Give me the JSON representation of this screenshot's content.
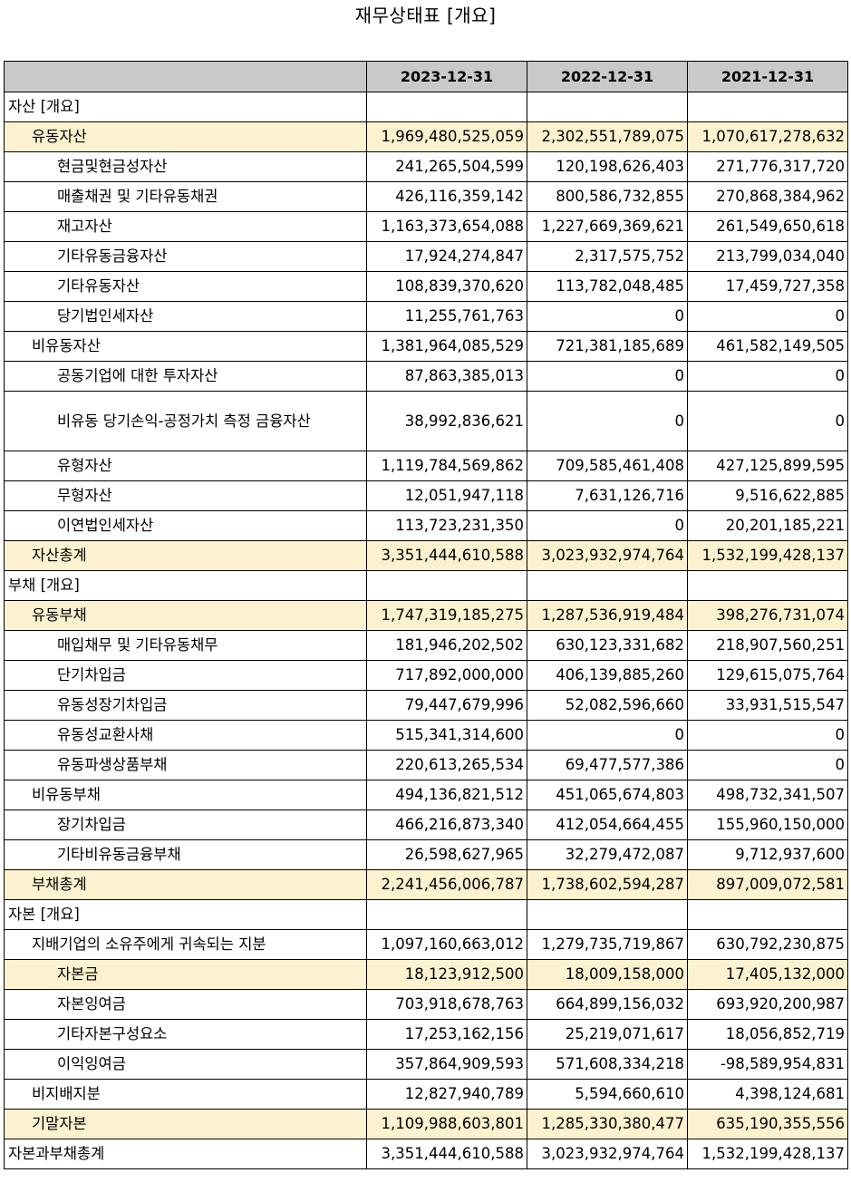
{
  "title": "재무상태표 [개요]",
  "headers": [
    "",
    "2023-12-31",
    "2022-12-31",
    "2021-12-31"
  ],
  "highlight_color": "#fdf2cf",
  "header_color": "#c9c9c9",
  "rows": [
    {
      "label": "자산 [개요]",
      "indent": 0,
      "highlight": false,
      "values": [
        "",
        "",
        ""
      ]
    },
    {
      "label": "유동자산",
      "indent": 1,
      "highlight": true,
      "values": [
        "1,969,480,525,059",
        "2,302,551,789,075",
        "1,070,617,278,632"
      ]
    },
    {
      "label": "현금및현금성자산",
      "indent": 2,
      "highlight": false,
      "values": [
        "241,265,504,599",
        "120,198,626,403",
        "271,776,317,720"
      ]
    },
    {
      "label": "매출채권 및 기타유동채권",
      "indent": 2,
      "highlight": false,
      "values": [
        "426,116,359,142",
        "800,586,732,855",
        "270,868,384,962"
      ]
    },
    {
      "label": "재고자산",
      "indent": 2,
      "highlight": false,
      "values": [
        "1,163,373,654,088",
        "1,227,669,369,621",
        "261,549,650,618"
      ]
    },
    {
      "label": "기타유동금융자산",
      "indent": 2,
      "highlight": false,
      "values": [
        "17,924,274,847",
        "2,317,575,752",
        "213,799,034,040"
      ]
    },
    {
      "label": "기타유동자산",
      "indent": 2,
      "highlight": false,
      "values": [
        "108,839,370,620",
        "113,782,048,485",
        "17,459,727,358"
      ]
    },
    {
      "label": "당기법인세자산",
      "indent": 2,
      "highlight": false,
      "values": [
        "11,255,761,763",
        "0",
        "0"
      ]
    },
    {
      "label": "비유동자산",
      "indent": 1,
      "highlight": false,
      "values": [
        "1,381,964,085,529",
        "721,381,185,689",
        "461,582,149,505"
      ]
    },
    {
      "label": "공동기업에 대한 투자자산",
      "indent": 2,
      "highlight": false,
      "values": [
        "87,863,385,013",
        "0",
        "0"
      ]
    },
    {
      "label": "비유동 당기손익-공정가치 측정 금융자산",
      "indent": 2,
      "highlight": false,
      "tall": true,
      "values": [
        "38,992,836,621",
        "0",
        "0"
      ]
    },
    {
      "label": "유형자산",
      "indent": 2,
      "highlight": false,
      "values": [
        "1,119,784,569,862",
        "709,585,461,408",
        "427,125,899,595"
      ]
    },
    {
      "label": "무형자산",
      "indent": 2,
      "highlight": false,
      "values": [
        "12,051,947,118",
        "7,631,126,716",
        "9,516,622,885"
      ]
    },
    {
      "label": "이연법인세자산",
      "indent": 2,
      "highlight": false,
      "values": [
        "113,723,231,350",
        "0",
        "20,201,185,221"
      ]
    },
    {
      "label": "자산총계",
      "indent": 1,
      "highlight": true,
      "values": [
        "3,351,444,610,588",
        "3,023,932,974,764",
        "1,532,199,428,137"
      ]
    },
    {
      "label": "부채 [개요]",
      "indent": 0,
      "highlight": false,
      "values": [
        "",
        "",
        ""
      ]
    },
    {
      "label": "유동부채",
      "indent": 1,
      "highlight": true,
      "values": [
        "1,747,319,185,275",
        "1,287,536,919,484",
        "398,276,731,074"
      ]
    },
    {
      "label": "매입채무 및 기타유동채무",
      "indent": 2,
      "highlight": false,
      "values": [
        "181,946,202,502",
        "630,123,331,682",
        "218,907,560,251"
      ]
    },
    {
      "label": "단기차입금",
      "indent": 2,
      "highlight": false,
      "values": [
        "717,892,000,000",
        "406,139,885,260",
        "129,615,075,764"
      ]
    },
    {
      "label": "유동성장기차입금",
      "indent": 2,
      "highlight": false,
      "values": [
        "79,447,679,996",
        "52,082,596,660",
        "33,931,515,547"
      ]
    },
    {
      "label": "유동성교환사채",
      "indent": 2,
      "highlight": false,
      "values": [
        "515,341,314,600",
        "0",
        "0"
      ]
    },
    {
      "label": "유동파생상품부채",
      "indent": 2,
      "highlight": false,
      "values": [
        "220,613,265,534",
        "69,477,577,386",
        "0"
      ]
    },
    {
      "label": "비유동부채",
      "indent": 1,
      "highlight": false,
      "values": [
        "494,136,821,512",
        "451,065,674,803",
        "498,732,341,507"
      ]
    },
    {
      "label": "장기차입금",
      "indent": 2,
      "highlight": false,
      "values": [
        "466,216,873,340",
        "412,054,664,455",
        "155,960,150,000"
      ]
    },
    {
      "label": "기타비유동금융부채",
      "indent": 2,
      "highlight": false,
      "values": [
        "26,598,627,965",
        "32,279,472,087",
        "9,712,937,600"
      ]
    },
    {
      "label": "부채총계",
      "indent": 1,
      "highlight": true,
      "values": [
        "2,241,456,006,787",
        "1,738,602,594,287",
        "897,009,072,581"
      ]
    },
    {
      "label": "자본 [개요]",
      "indent": 0,
      "highlight": false,
      "values": [
        "",
        "",
        ""
      ]
    },
    {
      "label": "지배기업의 소유주에게 귀속되는 지분",
      "indent": 1,
      "highlight": false,
      "values": [
        "1,097,160,663,012",
        "1,279,735,719,867",
        "630,792,230,875"
      ]
    },
    {
      "label": "자본금",
      "indent": 2,
      "highlight": true,
      "values": [
        "18,123,912,500",
        "18,009,158,000",
        "17,405,132,000"
      ]
    },
    {
      "label": "자본잉여금",
      "indent": 2,
      "highlight": false,
      "values": [
        "703,918,678,763",
        "664,899,156,032",
        "693,920,200,987"
      ]
    },
    {
      "label": "기타자본구성요소",
      "indent": 2,
      "highlight": false,
      "values": [
        "17,253,162,156",
        "25,219,071,617",
        "18,056,852,719"
      ]
    },
    {
      "label": "이익잉여금",
      "indent": 2,
      "highlight": false,
      "values": [
        "357,864,909,593",
        "571,608,334,218",
        "-98,589,954,831"
      ]
    },
    {
      "label": "비지배지분",
      "indent": 1,
      "highlight": false,
      "values": [
        "12,827,940,789",
        "5,594,660,610",
        "4,398,124,681"
      ]
    },
    {
      "label": "기말자본",
      "indent": 1,
      "highlight": true,
      "values": [
        "1,109,988,603,801",
        "1,285,330,380,477",
        "635,190,355,556"
      ]
    },
    {
      "label": "자본과부채총계",
      "indent": 0,
      "highlight": false,
      "values": [
        "3,351,444,610,588",
        "3,023,932,974,764",
        "1,532,199,428,137"
      ]
    }
  ]
}
